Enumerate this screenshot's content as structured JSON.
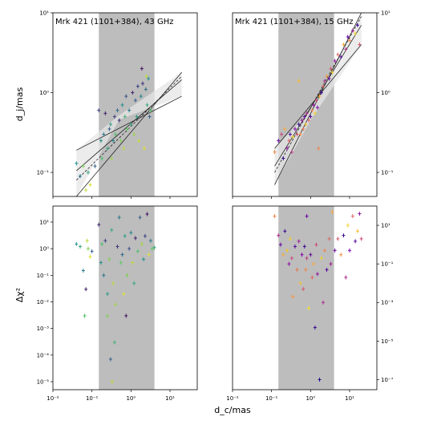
{
  "figure": {
    "ylabel_top": "d_j/mas",
    "ylabel_bottom": "Δχ²",
    "xlabel": "d_c/mas"
  },
  "chart_data": [
    {
      "type": "scatter",
      "panel": "top-left",
      "title": "Mrk 421 (1101+384), 43 GHz",
      "xscale": "log",
      "yscale": "log",
      "xlim": [
        0.01,
        50
      ],
      "ylim": [
        0.05,
        10
      ],
      "xticks": [],
      "yticks": [
        {
          "v": 0.1,
          "l": "10⁻¹"
        },
        {
          "v": 1,
          "l": "10⁰"
        },
        {
          "v": 10,
          "l": "10¹"
        }
      ],
      "yaxis_side": "left",
      "shaded_x": [
        0.15,
        4.0
      ],
      "fit_lines": [
        {
          "points": [
            [
              0.04,
              0.105
            ],
            [
              20,
              1.45
            ]
          ],
          "style": "solid"
        },
        {
          "points": [
            [
              0.04,
              0.05
            ],
            [
              20,
              1.8
            ]
          ],
          "style": "solid"
        },
        {
          "points": [
            [
              0.04,
              0.19
            ],
            [
              20,
              0.9
            ]
          ],
          "style": "solid"
        },
        {
          "points": [
            [
              0.04,
              0.08
            ],
            [
              20,
              1.6
            ]
          ],
          "style": "dashed"
        }
      ],
      "band": {
        "upper": [
          [
            0.04,
            0.19
          ],
          [
            0.5,
            0.52
          ],
          [
            20,
            1.8
          ]
        ],
        "lower": [
          [
            0.04,
            0.05
          ],
          [
            0.5,
            0.46
          ],
          [
            20,
            0.9
          ]
        ]
      },
      "colormap": "viridis",
      "points": [
        [
          0.04,
          0.13,
          0.5
        ],
        [
          0.05,
          0.09,
          0.4
        ],
        [
          0.06,
          0.12,
          0.8
        ],
        [
          0.07,
          0.06,
          0.9
        ],
        [
          0.08,
          0.1,
          0.6
        ],
        [
          0.09,
          0.07,
          0.95
        ],
        [
          0.12,
          0.12,
          0.3
        ],
        [
          0.15,
          0.6,
          0.2
        ],
        [
          0.17,
          0.25,
          0.5
        ],
        [
          0.18,
          0.15,
          0.7
        ],
        [
          0.2,
          0.3,
          0.4
        ],
        [
          0.22,
          0.55,
          0.1
        ],
        [
          0.25,
          0.2,
          0.6
        ],
        [
          0.28,
          0.35,
          0.3
        ],
        [
          0.3,
          0.4,
          0.55
        ],
        [
          0.32,
          0.15,
          0.85
        ],
        [
          0.35,
          0.25,
          0.45
        ],
        [
          0.38,
          0.5,
          0.2
        ],
        [
          0.4,
          0.3,
          0.7
        ],
        [
          0.45,
          0.6,
          0.35
        ],
        [
          0.5,
          0.45,
          0.15
        ],
        [
          0.55,
          0.25,
          0.8
        ],
        [
          0.6,
          0.7,
          0.5
        ],
        [
          0.65,
          0.2,
          0.9
        ],
        [
          0.7,
          0.5,
          0.65
        ],
        [
          0.75,
          0.9,
          0.25
        ],
        [
          0.8,
          0.35,
          0.75
        ],
        [
          0.9,
          0.6,
          0.4
        ],
        [
          1.0,
          0.4,
          0.6
        ],
        [
          1.1,
          1.0,
          0.1
        ],
        [
          1.2,
          0.3,
          0.85
        ],
        [
          1.3,
          0.8,
          0.3
        ],
        [
          1.4,
          0.5,
          0.55
        ],
        [
          1.5,
          1.2,
          0.2
        ],
        [
          1.6,
          0.25,
          0.92
        ],
        [
          1.8,
          0.9,
          0.45
        ],
        [
          2.0,
          1.3,
          0.15
        ],
        [
          2.2,
          0.2,
          0.95
        ],
        [
          2.4,
          1.1,
          0.35
        ],
        [
          2.6,
          0.7,
          0.6
        ],
        [
          2.8,
          1.5,
          0.5
        ],
        [
          3.0,
          0.5,
          0.3
        ],
        [
          3.2,
          0.6,
          0.7
        ],
        [
          1.9,
          2.0,
          0.05
        ],
        [
          2.5,
          1.6,
          0.9
        ]
      ]
    },
    {
      "type": "scatter",
      "panel": "top-right",
      "title": "Mrk 421 (1101+384), 15 GHz",
      "xscale": "log",
      "yscale": "log",
      "xlim": [
        0.01,
        50
      ],
      "ylim": [
        0.05,
        10
      ],
      "xticks": [],
      "yticks": [
        {
          "v": 0.1,
          "l": "10⁻¹"
        },
        {
          "v": 1,
          "l": "10⁰"
        },
        {
          "v": 10,
          "l": "10¹"
        }
      ],
      "yaxis_side": "right",
      "shaded_x": [
        0.15,
        4.0
      ],
      "fit_lines": [
        {
          "points": [
            [
              0.12,
              0.12
            ],
            [
              20,
              7.0
            ]
          ],
          "style": "solid"
        },
        {
          "points": [
            [
              0.12,
              0.07
            ],
            [
              20,
              10.0
            ]
          ],
          "style": "solid"
        },
        {
          "points": [
            [
              0.12,
              0.2
            ],
            [
              20,
              4.0
            ]
          ],
          "style": "solid"
        },
        {
          "points": [
            [
              0.12,
              0.1
            ],
            [
              20,
              9.0
            ]
          ],
          "style": "dashed"
        }
      ],
      "band": {
        "upper": [
          [
            0.12,
            0.2
          ],
          [
            1,
            0.6
          ],
          [
            20,
            10.0
          ]
        ],
        "lower": [
          [
            0.12,
            0.07
          ],
          [
            1,
            0.45
          ],
          [
            20,
            4.0
          ]
        ]
      },
      "colormap": "plasma",
      "points": [
        [
          0.12,
          0.18,
          0.7
        ],
        [
          0.15,
          0.25,
          0.2
        ],
        [
          0.18,
          0.3,
          0.5
        ],
        [
          0.2,
          0.15,
          0.1
        ],
        [
          0.22,
          0.35,
          0.8
        ],
        [
          0.25,
          0.2,
          0.3
        ],
        [
          0.28,
          0.25,
          0.6
        ],
        [
          0.3,
          0.3,
          0.15
        ],
        [
          0.33,
          0.18,
          0.45
        ],
        [
          0.35,
          0.28,
          0.9
        ],
        [
          0.4,
          0.35,
          0.25
        ],
        [
          0.45,
          0.3,
          0.55
        ],
        [
          0.5,
          0.4,
          0.1
        ],
        [
          0.55,
          0.3,
          0.75
        ],
        [
          0.6,
          0.45,
          0.35
        ],
        [
          0.65,
          0.35,
          0.65
        ],
        [
          0.7,
          0.5,
          0.2
        ],
        [
          0.75,
          0.4,
          0.85
        ],
        [
          0.8,
          0.55,
          0.4
        ],
        [
          0.9,
          0.45,
          0.6
        ],
        [
          1.0,
          0.5,
          0.15
        ],
        [
          1.1,
          0.6,
          0.7
        ],
        [
          1.2,
          0.7,
          0.3
        ],
        [
          1.3,
          0.55,
          0.9
        ],
        [
          1.4,
          0.8,
          0.5
        ],
        [
          1.5,
          0.65,
          0.25
        ],
        [
          1.7,
          0.9,
          0.8
        ],
        [
          1.9,
          1.0,
          0.1
        ],
        [
          2.1,
          1.2,
          0.6
        ],
        [
          2.3,
          1.4,
          0.4
        ],
        [
          2.6,
          1.6,
          0.75
        ],
        [
          3.0,
          1.5,
          0.2
        ],
        [
          3.3,
          2.0,
          0.55
        ],
        [
          3.6,
          1.8,
          0.9
        ],
        [
          0.5,
          1.4,
          0.85
        ],
        [
          1.6,
          0.2,
          0.7
        ],
        [
          4.2,
          2.5,
          0.3
        ],
        [
          5.0,
          3.0,
          0.6
        ],
        [
          6.0,
          2.8,
          0.15
        ],
        [
          7.0,
          4.0,
          0.8
        ],
        [
          8.0,
          3.5,
          0.4
        ],
        [
          9.0,
          5.0,
          0.2
        ],
        [
          10.0,
          4.5,
          0.7
        ],
        [
          12.0,
          6.0,
          0.35
        ],
        [
          14.0,
          5.5,
          0.9
        ],
        [
          16.0,
          7.0,
          0.1
        ],
        [
          18.0,
          4.0,
          0.55
        ]
      ]
    },
    {
      "type": "scatter",
      "panel": "bottom-left",
      "xscale": "log",
      "yscale": "log",
      "xlim": [
        0.01,
        50
      ],
      "ylim": [
        5e-06,
        40
      ],
      "xticks": [
        {
          "v": 0.01,
          "l": "10⁻²"
        },
        {
          "v": 0.1,
          "l": "10⁻¹"
        },
        {
          "v": 1,
          "l": "10⁰"
        },
        {
          "v": 10,
          "l": "10¹"
        }
      ],
      "yticks": [
        {
          "v": 1e-05,
          "l": "10⁻⁵"
        },
        {
          "v": 0.0001,
          "l": "10⁻⁴"
        },
        {
          "v": 0.001,
          "l": "10⁻³"
        },
        {
          "v": 0.01,
          "l": "10⁻²"
        },
        {
          "v": 0.1,
          "l": "10⁻¹"
        },
        {
          "v": 1,
          "l": "10⁰"
        },
        {
          "v": 10,
          "l": "10¹"
        }
      ],
      "yaxis_side": "left",
      "shaded_x": [
        0.15,
        4.0
      ],
      "colormap": "viridis",
      "points": [
        [
          0.04,
          1.5,
          0.5
        ],
        [
          0.05,
          1.2,
          0.6
        ],
        [
          0.06,
          0.15,
          0.4
        ],
        [
          0.065,
          0.003,
          0.7
        ],
        [
          0.07,
          0.03,
          0.1
        ],
        [
          0.075,
          2.0,
          0.9
        ],
        [
          0.08,
          1.0,
          0.8
        ],
        [
          0.09,
          0.5,
          0.95
        ],
        [
          0.1,
          0.8,
          0.3
        ],
        [
          0.15,
          8.0,
          0.1
        ],
        [
          0.17,
          0.3,
          0.5
        ],
        [
          0.18,
          1.5,
          0.7
        ],
        [
          0.2,
          0.1,
          0.4
        ],
        [
          0.22,
          2.0,
          0.2
        ],
        [
          0.25,
          0.02,
          0.55
        ],
        [
          0.28,
          0.4,
          0.8
        ],
        [
          0.3,
          7e-05,
          0.3
        ],
        [
          0.32,
          5.0,
          0.6
        ],
        [
          0.35,
          0.05,
          0.9
        ],
        [
          0.38,
          0.0003,
          0.65
        ],
        [
          0.4,
          0.008,
          0.85
        ],
        [
          0.45,
          1.2,
          0.15
        ],
        [
          0.5,
          15.0,
          0.4
        ],
        [
          0.55,
          0.3,
          0.75
        ],
        [
          0.6,
          0.6,
          0.35
        ],
        [
          0.65,
          0.02,
          0.95
        ],
        [
          0.7,
          3.0,
          0.55
        ],
        [
          0.75,
          0.003,
          0.05
        ],
        [
          0.8,
          0.1,
          0.8
        ],
        [
          0.9,
          1.0,
          0.25
        ],
        [
          1.0,
          4.0,
          0.45
        ],
        [
          1.1,
          0.3,
          0.9
        ],
        [
          1.2,
          0.05,
          0.6
        ],
        [
          1.3,
          2.5,
          0.1
        ],
        [
          1.5,
          0.8,
          0.7
        ],
        [
          1.7,
          15.0,
          0.3
        ],
        [
          1.9,
          1.5,
          0.85
        ],
        [
          2.1,
          0.4,
          0.5
        ],
        [
          2.3,
          3.0,
          0.2
        ],
        [
          2.6,
          20.0,
          0.05
        ],
        [
          2.9,
          0.6,
          0.95
        ],
        [
          3.2,
          2.0,
          0.4
        ],
        [
          3.5,
          1.0,
          0.75
        ],
        [
          0.33,
          1e-05,
          0.9
        ],
        [
          0.25,
          0.003,
          0.8
        ],
        [
          4.0,
          1.1,
          0.6
        ]
      ]
    },
    {
      "type": "scatter",
      "panel": "bottom-right",
      "xscale": "log",
      "yscale": "log",
      "xlim": [
        0.01,
        50
      ],
      "ylim": [
        3e-08,
        100
      ],
      "xticks": [
        {
          "v": 0.01,
          "l": "10⁻²"
        },
        {
          "v": 0.1,
          "l": "10⁻¹"
        },
        {
          "v": 1,
          "l": "10⁰"
        },
        {
          "v": 10,
          "l": "10¹"
        }
      ],
      "yticks": [
        {
          "v": 1e-07,
          "l": "10⁻⁷"
        },
        {
          "v": 1e-05,
          "l": "10⁻⁵"
        },
        {
          "v": 0.001,
          "l": "10⁻³"
        },
        {
          "v": 0.1,
          "l": "10⁻¹"
        },
        {
          "v": 10,
          "l": "10¹"
        }
      ],
      "yaxis_side": "right",
      "shaded_x": [
        0.15,
        4.0
      ],
      "colormap": "plasma",
      "points": [
        [
          0.12,
          30.0,
          0.7
        ],
        [
          0.15,
          3.0,
          0.4
        ],
        [
          0.17,
          1.0,
          0.2
        ],
        [
          0.2,
          0.3,
          0.8
        ],
        [
          0.22,
          5.0,
          0.1
        ],
        [
          0.25,
          0.5,
          0.6
        ],
        [
          0.28,
          0.1,
          0.3
        ],
        [
          0.3,
          2.0,
          0.9
        ],
        [
          0.33,
          0.2,
          0.5
        ],
        [
          0.35,
          0.002,
          0.75
        ],
        [
          0.4,
          0.8,
          0.15
        ],
        [
          0.45,
          0.05,
          0.65
        ],
        [
          0.5,
          1.5,
          0.35
        ],
        [
          0.55,
          0.01,
          0.85
        ],
        [
          0.6,
          0.3,
          0.25
        ],
        [
          0.65,
          0.005,
          0.55
        ],
        [
          0.7,
          0.8,
          0.1
        ],
        [
          0.75,
          0.05,
          0.7
        ],
        [
          0.8,
          0.2,
          0.45
        ],
        [
          0.9,
          0.0005,
          0.95
        ],
        [
          1.0,
          0.3,
          0.2
        ],
        [
          1.1,
          0.02,
          0.6
        ],
        [
          1.2,
          0.1,
          0.8
        ],
        [
          1.3,
          5e-05,
          0.1
        ],
        [
          1.4,
          1.0,
          0.5
        ],
        [
          1.5,
          0.03,
          0.3
        ],
        [
          1.7,
          1e-07,
          0.05
        ],
        [
          1.9,
          0.2,
          0.9
        ],
        [
          2.1,
          0.001,
          0.4
        ],
        [
          2.3,
          0.5,
          0.7
        ],
        [
          2.6,
          0.05,
          0.15
        ],
        [
          3.0,
          2.0,
          0.6
        ],
        [
          3.3,
          0.1,
          0.35
        ],
        [
          3.6,
          50.0,
          0.8
        ],
        [
          4.2,
          0.5,
          0.2
        ],
        [
          5.0,
          2.0,
          0.55
        ],
        [
          6.0,
          0.3,
          0.75
        ],
        [
          7.0,
          3.0,
          0.1
        ],
        [
          8.0,
          0.02,
          0.4
        ],
        [
          9.0,
          10.0,
          0.9
        ],
        [
          10.0,
          0.5,
          0.25
        ],
        [
          12.0,
          30.0,
          0.6
        ],
        [
          14.0,
          1.5,
          0.15
        ],
        [
          16.0,
          5.0,
          0.85
        ],
        [
          18.0,
          40.0,
          0.3
        ],
        [
          20.0,
          2.0,
          0.5
        ],
        [
          0.8,
          30.0,
          0.2
        ],
        [
          0.25,
          0.5,
          0.9
        ]
      ]
    }
  ]
}
